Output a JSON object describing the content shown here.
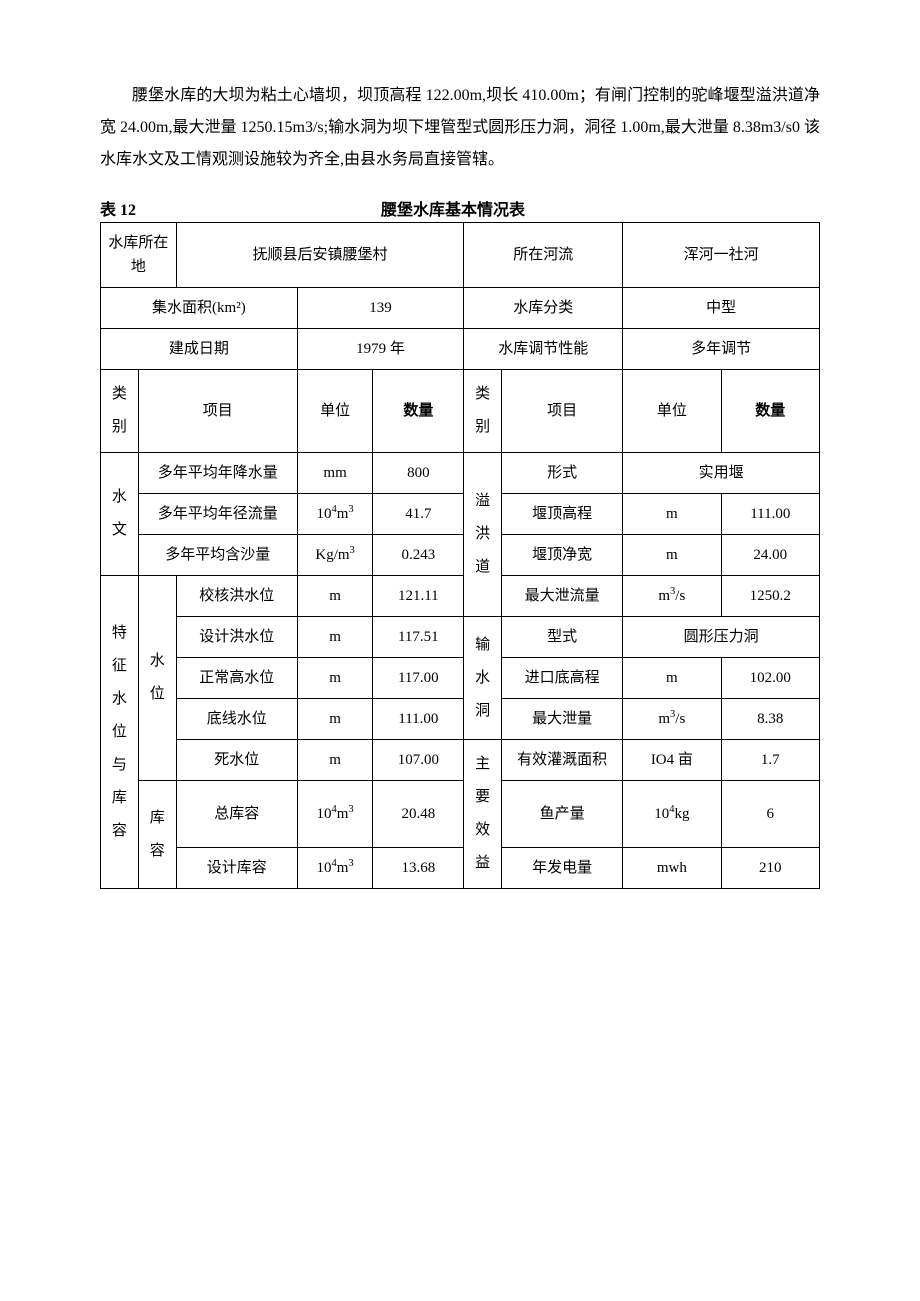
{
  "paragraph": "腰堡水库的大坝为粘土心墙坝，坝顶高程 122.00m,坝长 410.00m；有闸门控制的驼峰堰型溢洪道净宽 24.00m,最大泄量 1250.15m3/s;输水洞为坝下埋管型式圆形压力洞，洞径 1.00m,最大泄量 8.38m3/s0 该水库水文及工情观测设施较为齐全,由县水务局直接管辖。",
  "table_label": "表 12",
  "table_title": "腰堡水库基本情况表",
  "colors": {
    "background": "#ffffff",
    "text": "#000000",
    "border": "#000000"
  },
  "fonts": {
    "body_size_pt": 12,
    "title_weight": "bold"
  },
  "header_rows": [
    {
      "c1": "水库所在地",
      "c2": "抚顺县后安镇腰堡村",
      "c3": "所在河流",
      "c4": "浑河一社河"
    },
    {
      "c1": "集水面积(km²)",
      "c2": "139",
      "c3": "水库分类",
      "c4": "中型"
    },
    {
      "c1": "建成日期",
      "c2": "1979 年",
      "c3": "水库调节性能",
      "c4": "多年调节"
    }
  ],
  "col_headers": {
    "left": {
      "cat": "类别",
      "item": "项目",
      "unit": "单位",
      "qty": "数量"
    },
    "right": {
      "cat": "类别",
      "item": "项目",
      "unit": "单位",
      "qty": "数量"
    }
  },
  "sections": {
    "hydrology": {
      "label": "水文",
      "rows": [
        {
          "item": "多年平均年降水量",
          "unit": "mm",
          "qty": "800"
        },
        {
          "item": "多年平均年径流量",
          "unit_html": "10<sup>4</sup>m<sup>3</sup>",
          "qty": "41.7"
        },
        {
          "item": "多年平均含沙量",
          "unit_html": "Kg/m<sup>3</sup>",
          "qty": "0.243"
        }
      ]
    },
    "spillway": {
      "label": "溢洪道",
      "rows": [
        {
          "item": "形式",
          "merged_val": "实用堰"
        },
        {
          "item": "堰顶高程",
          "unit": "m",
          "qty": "111.00"
        },
        {
          "item": "堰顶净宽",
          "unit": "m",
          "qty": "24.00"
        },
        {
          "item": "最大泄流量",
          "unit_html": "m<sup>3</sup>/s",
          "qty": "1250.2"
        }
      ]
    },
    "char": {
      "label": "特征水位与库容",
      "sub1_label": "水位",
      "sub2_label": "库容",
      "water_level": [
        {
          "item": "校核洪水位",
          "unit": "m",
          "qty": "121.11"
        },
        {
          "item": "设计洪水位",
          "unit": "m",
          "qty": "117.51"
        },
        {
          "item": "正常高水位",
          "unit": "m",
          "qty": "117.00"
        },
        {
          "item": "底线水位",
          "unit": "m",
          "qty": "111.00"
        },
        {
          "item": "死水位",
          "unit": "m",
          "qty": "107.00"
        }
      ],
      "capacity": [
        {
          "item": "总库容",
          "unit_html": "10<sup>4</sup>m<sup>3</sup>",
          "qty": "20.48"
        },
        {
          "item": "设计库容",
          "unit_html": "10<sup>4</sup>m<sup>3</sup>",
          "qty": "13.68"
        }
      ]
    },
    "outlet": {
      "label": "输水洞",
      "rows": [
        {
          "item": "型式",
          "merged_val": "圆形压力洞"
        },
        {
          "item": "进口底高程",
          "unit": "m",
          "qty": "102.00"
        },
        {
          "item": "最大泄量",
          "unit_html": "m<sup>3</sup>/s",
          "qty": "8.38"
        }
      ]
    },
    "benefit": {
      "label": "主要效益",
      "rows": [
        {
          "item": "有效灌溉面积",
          "unit": "IO4 亩",
          "qty": "1.7"
        },
        {
          "item": "鱼产量",
          "unit_html": "10<sup>4</sup>kg",
          "qty": "6"
        },
        {
          "item": "年发电量",
          "unit": "mwh",
          "qty": "210"
        }
      ]
    }
  }
}
